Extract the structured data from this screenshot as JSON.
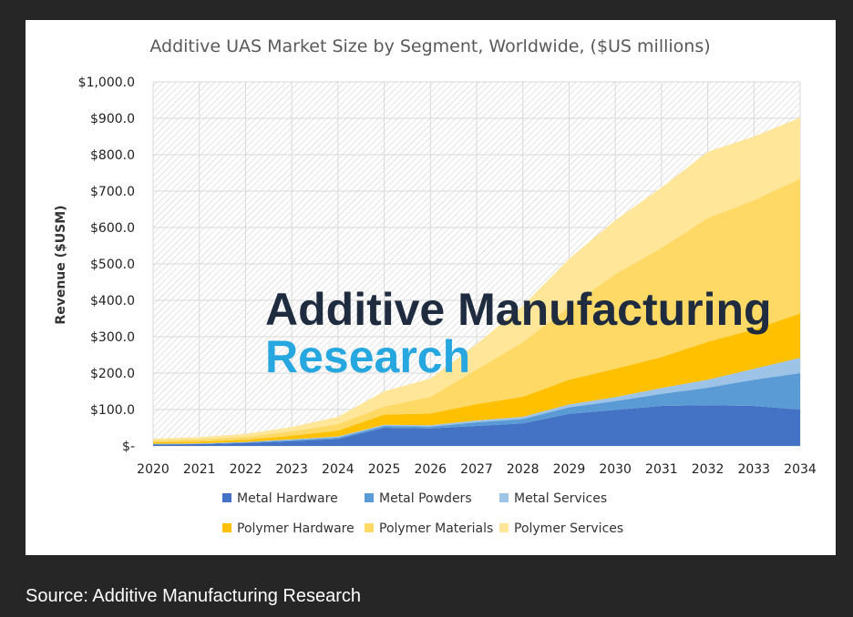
{
  "chart_data": {
    "type": "area",
    "stacked": true,
    "title": "Additive UAS Market Size by Segment, Worldwide, ($US millions)",
    "xlabel": "",
    "ylabel": "Revenue ($USM)",
    "x": [
      "2020",
      "2021",
      "2022",
      "2023",
      "2024",
      "2025",
      "2026",
      "2027",
      "2028",
      "2029",
      "2030",
      "2031",
      "2032",
      "2033",
      "2034"
    ],
    "ylim": [
      0,
      1000
    ],
    "yticks": [
      0,
      100,
      200,
      300,
      400,
      500,
      600,
      700,
      800,
      900,
      1000
    ],
    "ytick_labels": [
      "$-",
      "$100.0",
      "$200.0",
      "$300.0",
      "$400.0",
      "$500.0",
      "$600.0",
      "$700.0",
      "$800.0",
      "$900.0",
      "$1,000.0"
    ],
    "grid": true,
    "legend_position": "bottom",
    "series": [
      {
        "name": "Metal Hardware",
        "color": "#4472c4",
        "values": [
          4,
          5,
          8,
          13,
          19,
          50,
          48,
          55,
          62,
          88,
          99,
          110,
          112,
          110,
          100
        ]
      },
      {
        "name": "Metal Powders",
        "color": "#5b9bd5",
        "values": [
          1,
          1,
          2,
          3,
          4,
          5,
          5,
          10,
          12,
          18,
          24,
          33,
          48,
          72,
          100
        ]
      },
      {
        "name": "Metal Services",
        "color": "#9dc3e6",
        "values": [
          1,
          1,
          1,
          2,
          3,
          3,
          4,
          5,
          6,
          8,
          11,
          16,
          22,
          30,
          42
        ]
      },
      {
        "name": "Polymer Hardware",
        "color": "#ffc000",
        "values": [
          4,
          5,
          6,
          10,
          16,
          28,
          32,
          45,
          55,
          68,
          78,
          85,
          104,
          108,
          122
        ]
      },
      {
        "name": "Polymer Materials",
        "color": "#ffd966",
        "values": [
          5,
          6,
          8,
          12,
          18,
          22,
          46,
          95,
          150,
          200,
          260,
          300,
          340,
          355,
          370
        ]
      },
      {
        "name": "Polymer Services",
        "color": "#ffe699",
        "values": [
          5,
          6,
          8,
          12,
          20,
          42,
          50,
          70,
          100,
          132,
          148,
          166,
          182,
          175,
          168
        ]
      }
    ]
  },
  "watermark": {
    "line1": "Additive Manufacturing",
    "line2": "Research"
  },
  "caption": "Source: Additive Manufacturing Research"
}
